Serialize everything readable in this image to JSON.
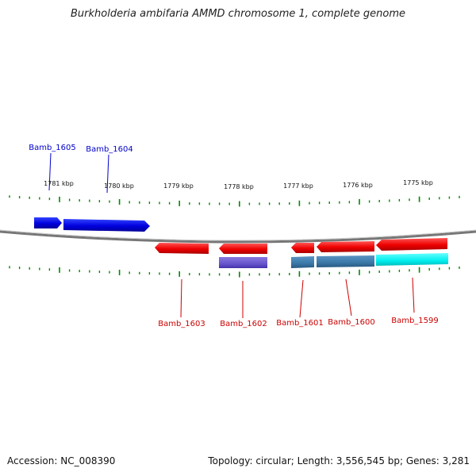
{
  "title": "Burkholderia ambifaria AMMD chromosome 1, complete genome",
  "footer": {
    "accession": "Accession: NC_008390",
    "summary": "Topology: circular; Length: 3,556,545 bp; Genes: 3,281"
  },
  "colors": {
    "forward_gene": "#0000ee",
    "reverse_gene": "#ee0000",
    "forward_label": "#0000cc",
    "reverse_label": "#cc0000",
    "backbone": "#777777",
    "tick": "#008800",
    "feature_purple": "#6655cc",
    "feature_steelblue": "#3a78a8",
    "feature_cyan": "#00eeee"
  },
  "scale_labels": [
    "1781 kbp",
    "1780 kbp",
    "1779 kbp",
    "1778 kbp",
    "1777 kbp",
    "1776 kbp",
    "1775 kbp"
  ],
  "genes": [
    {
      "name": "Bamb_1605",
      "strand": "forward"
    },
    {
      "name": "Bamb_1604",
      "strand": "forward"
    },
    {
      "name": "Bamb_1603",
      "strand": "reverse"
    },
    {
      "name": "Bamb_1602",
      "strand": "reverse"
    },
    {
      "name": "Bamb_1601",
      "strand": "reverse"
    },
    {
      "name": "Bamb_1600",
      "strand": "reverse"
    },
    {
      "name": "Bamb_1599",
      "strand": "reverse"
    }
  ]
}
